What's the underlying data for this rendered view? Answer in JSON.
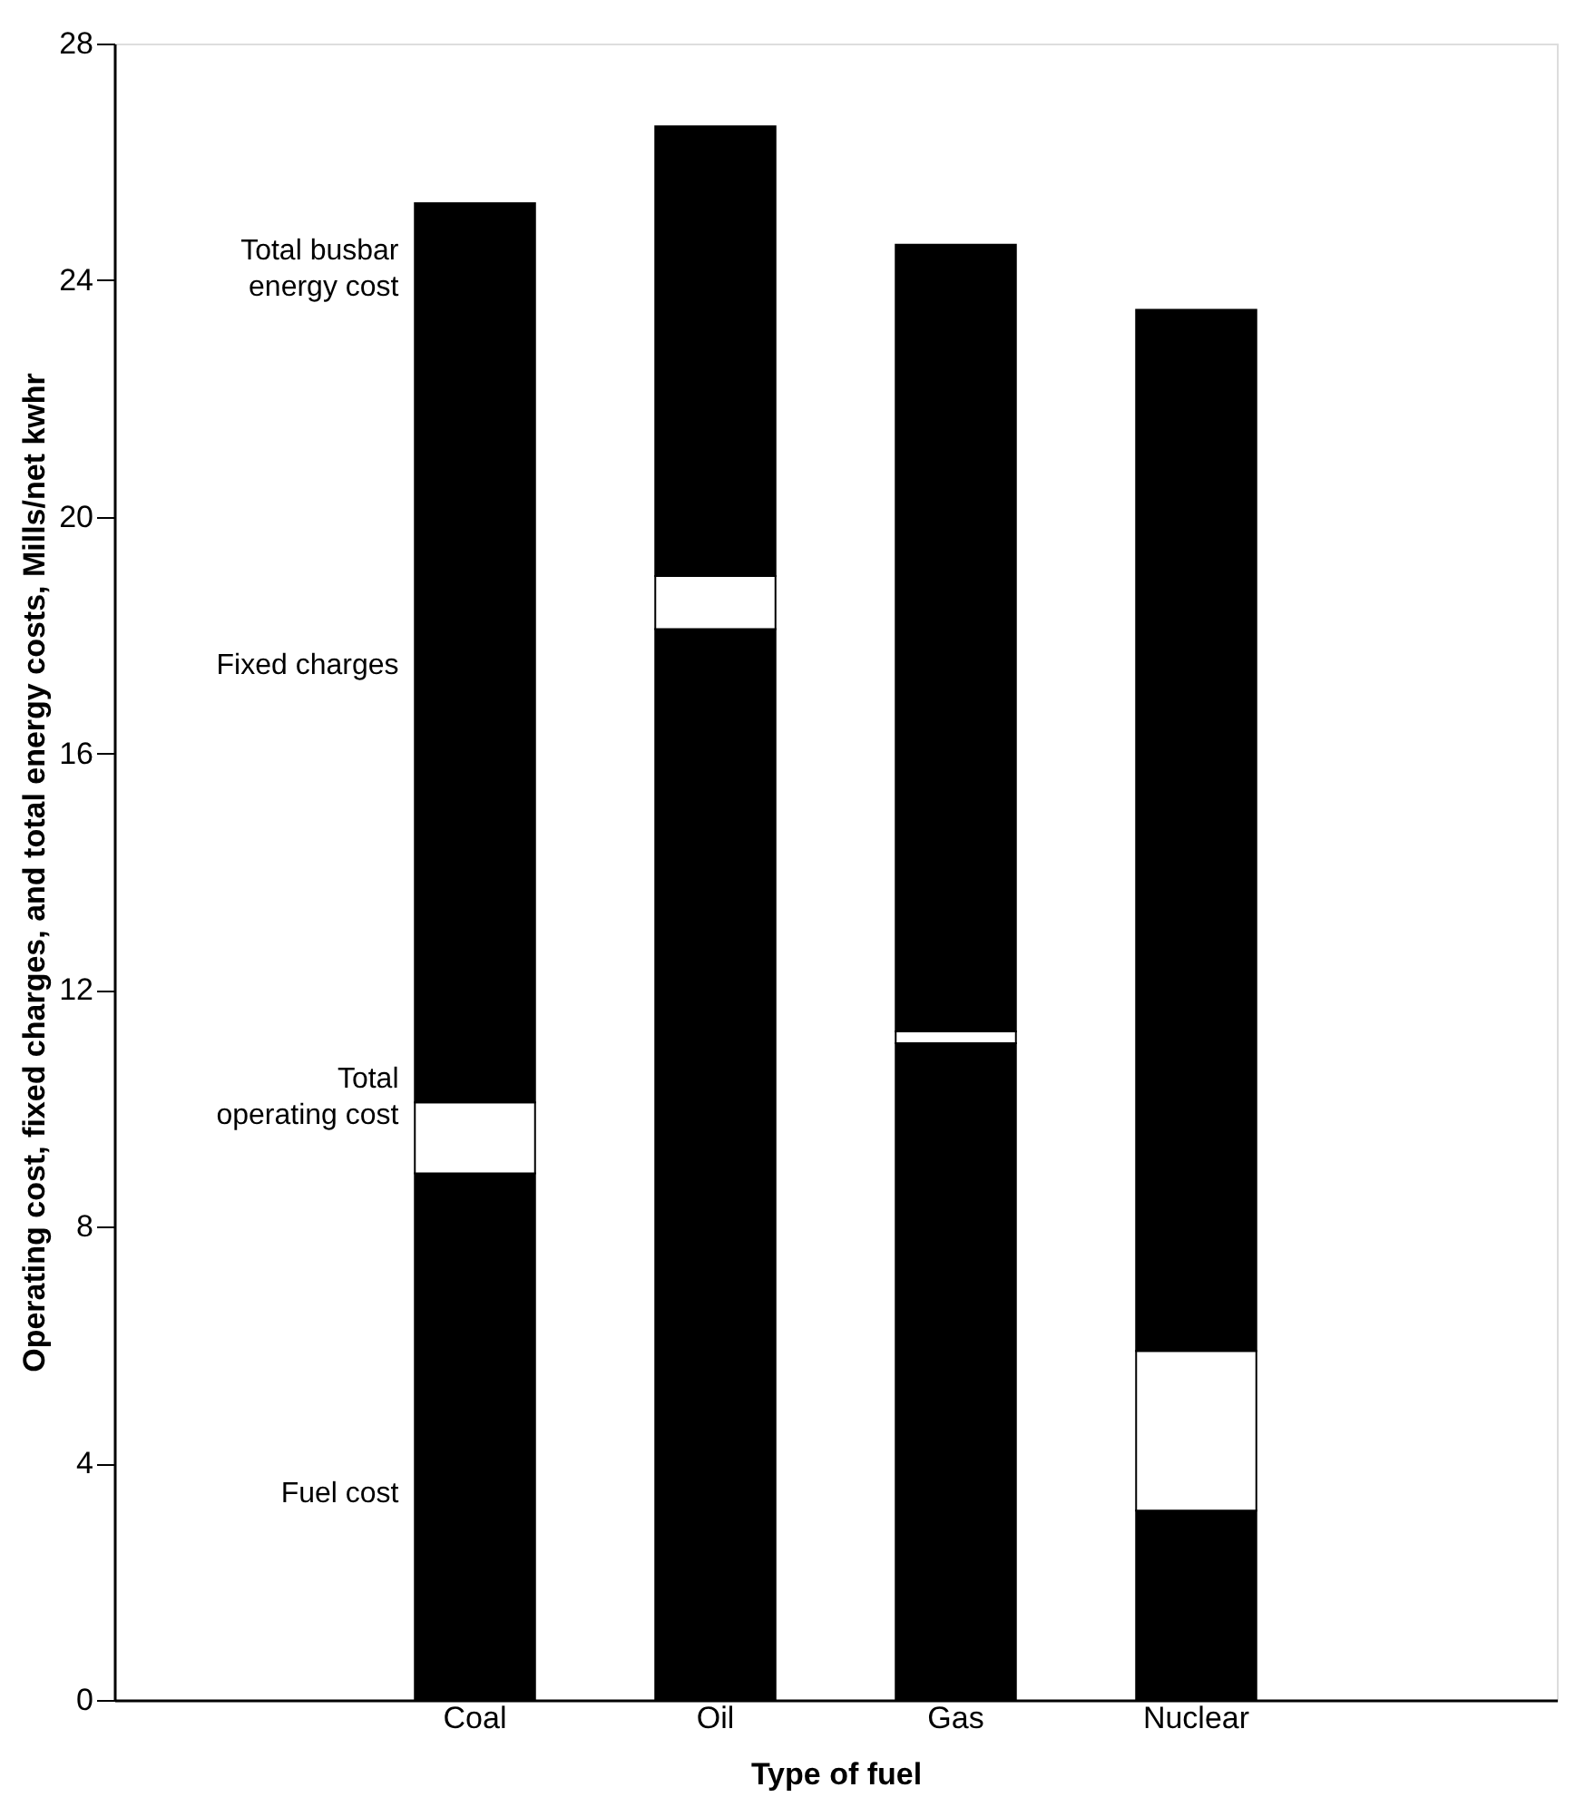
{
  "chart_data": {
    "type": "bar",
    "stacked": true,
    "categories": [
      "Coal",
      "Oil",
      "Gas",
      "Nuclear"
    ],
    "series": [
      {
        "color": "#000000",
        "values": [
          8.9,
          18.1,
          11.1,
          3.2
        ]
      },
      {
        "color": "#ffffff",
        "values": [
          1.2,
          0.9,
          0.2,
          2.7
        ]
      },
      {
        "color": "#000000",
        "values": [
          15.2,
          7.6,
          13.3,
          17.6
        ]
      }
    ],
    "xlabel": "Type of fuel",
    "ylabel": "Operating cost, fixed charges, and total energy costs, Mills/net kwhr",
    "ylim": [
      0,
      28
    ],
    "yticks": [
      0,
      4,
      8,
      12,
      16,
      20,
      24,
      28
    ],
    "grid": false,
    "annotations": [
      "Total busbar energy cost",
      "Fixed charges",
      "Total operating cost",
      "Fuel cost"
    ]
  }
}
